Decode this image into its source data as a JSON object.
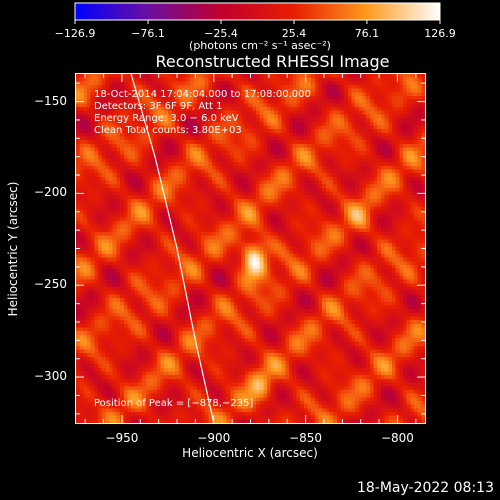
{
  "chart_data": {
    "type": "heatmap",
    "title": "Reconstructed RHESSI Image",
    "xlabel": "Heliocentric X (arcsec)",
    "ylabel": "Heliocentric Y (arcsec)",
    "xlim": [
      -975,
      -785
    ],
    "ylim": [
      -325,
      -135
    ],
    "xticks": [
      -950,
      -900,
      -850,
      -800
    ],
    "xtick_labels": [
      "−950",
      "−900",
      "−850",
      "−800"
    ],
    "yticks": [
      -150,
      -200,
      -250,
      -300
    ],
    "ytick_labels": [
      "−150",
      "−200",
      "−250",
      "−300"
    ],
    "colorbar": {
      "range": [
        -126.9,
        126.9
      ],
      "ticks": [
        -126.9,
        -76.1,
        -25.4,
        25.4,
        76.1,
        126.9
      ],
      "tick_labels": [
        "−126.9",
        "−76.1",
        "−25.4",
        "25.4",
        "76.1",
        "126.9"
      ],
      "units": "(photons cm⁻² s⁻¹ asec⁻²)",
      "colormap": [
        "#0000ff",
        "#6a0fa0",
        "#c0002e",
        "#e81e00",
        "#ff9a1e",
        "#ffffff"
      ]
    },
    "info_lines": [
      "18-Oct-2014 17:04:04.000 to 17:08:00.000",
      "Detectors: 3F 6F 9F, Att 1",
      "Energy Range: 3.0 − 6.0 keV",
      "Clean    Total counts: 3.80E+03"
    ],
    "peak": {
      "label": "Position of Peak = [−878,−235]",
      "x": -878,
      "y": -235,
      "value": 126.9
    },
    "sources": [
      {
        "x": -878,
        "y": -235,
        "value": 126.9
      },
      {
        "x": -875,
        "y": -305,
        "value": 60
      },
      {
        "x": -820,
        "y": -215,
        "value": 45
      }
    ],
    "limb_curve": [
      {
        "x": -945,
        "y": -135
      },
      {
        "x": -932,
        "y": -180
      },
      {
        "x": -920,
        "y": -230
      },
      {
        "x": -910,
        "y": -280
      },
      {
        "x": -900,
        "y": -325
      }
    ],
    "grid": false
  },
  "footer": {
    "timestamp": "18-May-2022 08:13"
  }
}
